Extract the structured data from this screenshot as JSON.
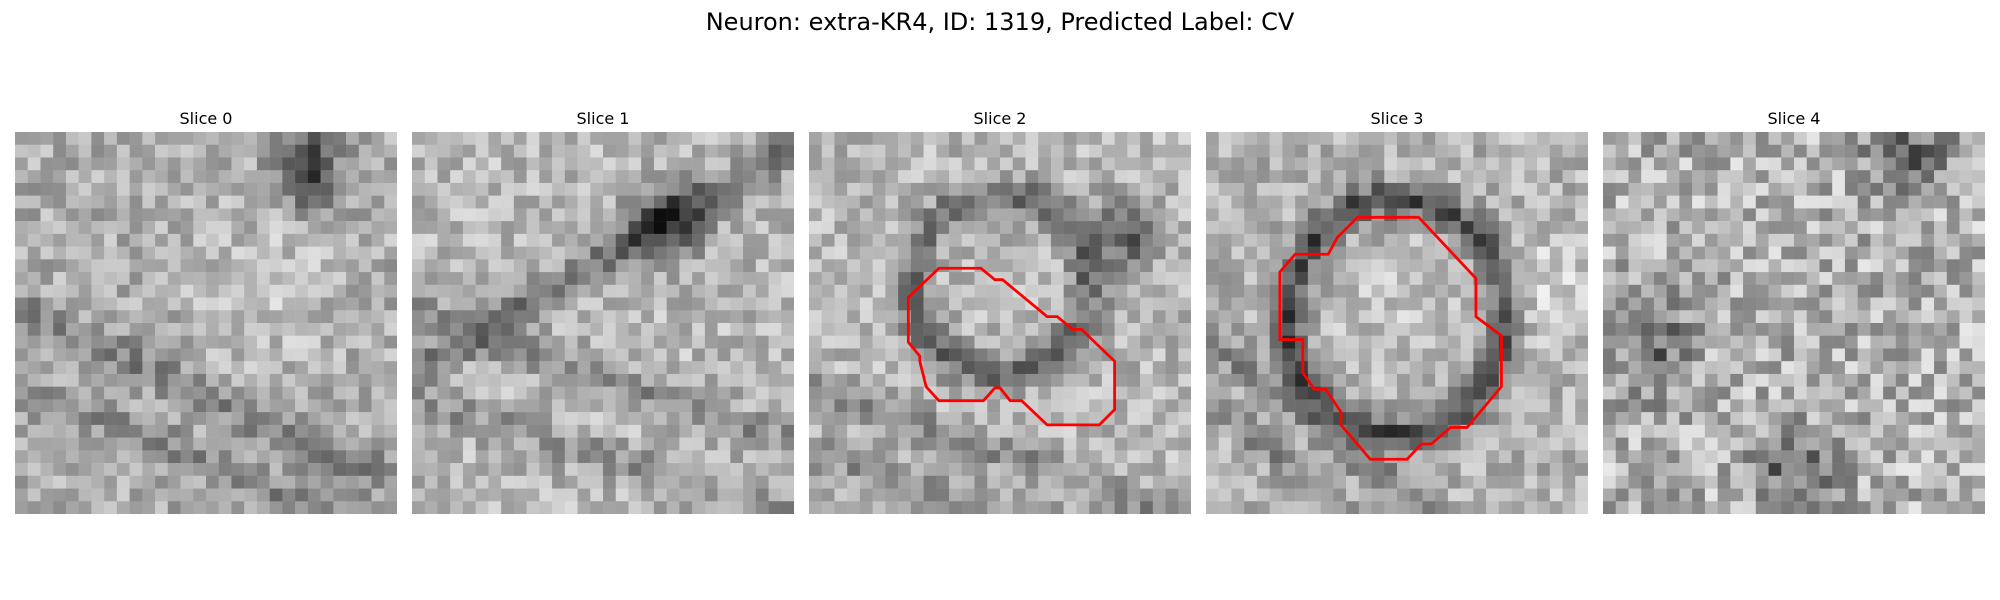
{
  "figure": {
    "title": "Neuron: extra-KR4, ID: 1319, Predicted Label: CV"
  },
  "panels": [
    {
      "label": "Slice 0",
      "has_contour": false,
      "seed": 11
    },
    {
      "label": "Slice 1",
      "has_contour": false,
      "seed": 23
    },
    {
      "label": "Slice 2",
      "has_contour": true,
      "seed": 37
    },
    {
      "label": "Slice 3",
      "has_contour": true,
      "seed": 51
    },
    {
      "label": "Slice 4",
      "has_contour": false,
      "seed": 67
    }
  ],
  "style": {
    "contour_color": "#ff0000",
    "colormap": "gray"
  }
}
